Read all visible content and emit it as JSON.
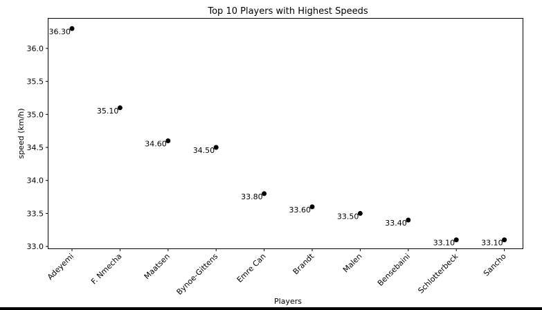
{
  "chart_data": {
    "type": "scatter",
    "title": "Top 10 Players with Highest Speeds",
    "xlabel": "Players",
    "ylabel": "speed (km/h)",
    "categories": [
      "Adeyemi",
      "F. Nmecha",
      "Maatsen",
      "Bynoe-Gittens",
      "Emre Can",
      "Brandt",
      "Malen",
      "Bensebaini",
      "Schlotterbeck",
      "Sancho"
    ],
    "values": [
      36.3,
      35.1,
      34.6,
      34.5,
      33.8,
      33.6,
      33.5,
      33.4,
      33.1,
      33.1
    ],
    "data_labels": [
      "36.30",
      "35.10",
      "34.60",
      "34.50",
      "33.80",
      "33.60",
      "33.50",
      "33.40",
      "33.10",
      "33.10"
    ],
    "yticks": [
      "33.0",
      "33.5",
      "34.0",
      "34.5",
      "35.0",
      "35.5",
      "36.0"
    ],
    "ylim": [
      32.97,
      36.45
    ],
    "marker_color": "#000000",
    "grid": false,
    "legend": "none"
  }
}
